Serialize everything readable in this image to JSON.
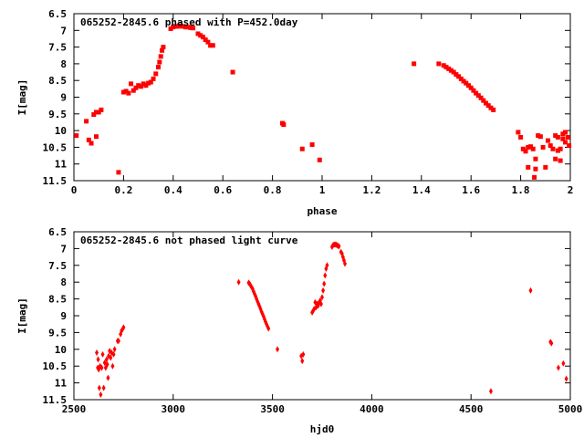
{
  "chart_data": [
    {
      "type": "scatter",
      "title": "065252-2845.6 phased with P=452.0day",
      "xlabel": "phase",
      "ylabel": "I[mag]",
      "xlim": [
        0,
        2
      ],
      "ylim": [
        11.5,
        6.5
      ],
      "y_inverted": true,
      "x_ticks": [
        "0",
        "0.2",
        "0.4",
        "0.6",
        "0.8",
        "1",
        "1.2",
        "1.4",
        "1.6",
        "1.8",
        "2"
      ],
      "y_ticks": [
        "6.5",
        "7",
        "7.5",
        "8",
        "8.5",
        "9",
        "9.5",
        "10",
        "10.5",
        "11",
        "11.5"
      ],
      "grid": false,
      "marker_color": "#ff0000",
      "series": [
        {
          "points": [
            [
              0.01,
              10.15
            ],
            [
              0.05,
              9.72
            ],
            [
              0.06,
              10.28
            ],
            [
              0.07,
              10.38
            ],
            [
              0.08,
              9.52
            ],
            [
              0.09,
              10.18
            ],
            [
              0.09,
              9.45
            ],
            [
              0.1,
              9.45
            ],
            [
              0.11,
              9.38
            ],
            [
              0.18,
              11.25
            ],
            [
              0.2,
              8.85
            ],
            [
              0.21,
              8.82
            ],
            [
              0.22,
              8.88
            ],
            [
              0.23,
              8.6
            ],
            [
              0.24,
              8.8
            ],
            [
              0.25,
              8.72
            ],
            [
              0.26,
              8.65
            ],
            [
              0.27,
              8.68
            ],
            [
              0.28,
              8.6
            ],
            [
              0.29,
              8.65
            ],
            [
              0.3,
              8.58
            ],
            [
              0.31,
              8.55
            ],
            [
              0.32,
              8.45
            ],
            [
              0.33,
              8.3
            ],
            [
              0.34,
              8.1
            ],
            [
              0.345,
              7.95
            ],
            [
              0.35,
              7.78
            ],
            [
              0.355,
              7.6
            ],
            [
              0.36,
              7.5
            ],
            [
              0.39,
              6.95
            ],
            [
              0.4,
              6.9
            ],
            [
              0.41,
              6.88
            ],
            [
              0.42,
              6.88
            ],
            [
              0.43,
              6.87
            ],
            [
              0.44,
              6.88
            ],
            [
              0.45,
              6.9
            ],
            [
              0.46,
              6.9
            ],
            [
              0.47,
              6.92
            ],
            [
              0.48,
              6.93
            ],
            [
              0.5,
              7.1
            ],
            [
              0.51,
              7.15
            ],
            [
              0.52,
              7.2
            ],
            [
              0.53,
              7.28
            ],
            [
              0.54,
              7.35
            ],
            [
              0.55,
              7.45
            ],
            [
              0.56,
              7.45
            ],
            [
              0.64,
              8.25
            ],
            [
              0.84,
              9.78
            ],
            [
              0.845,
              9.82
            ],
            [
              0.92,
              10.55
            ],
            [
              0.96,
              10.42
            ],
            [
              0.99,
              10.88
            ],
            [
              1.37,
              8.0
            ],
            [
              1.47,
              8.0
            ],
            [
              1.49,
              8.05
            ],
            [
              1.5,
              8.1
            ],
            [
              1.51,
              8.15
            ],
            [
              1.52,
              8.2
            ],
            [
              1.53,
              8.25
            ],
            [
              1.54,
              8.32
            ],
            [
              1.55,
              8.38
            ],
            [
              1.56,
              8.45
            ],
            [
              1.57,
              8.52
            ],
            [
              1.58,
              8.58
            ],
            [
              1.59,
              8.65
            ],
            [
              1.6,
              8.72
            ],
            [
              1.61,
              8.8
            ],
            [
              1.62,
              8.88
            ],
            [
              1.63,
              8.95
            ],
            [
              1.64,
              9.02
            ],
            [
              1.65,
              9.1
            ],
            [
              1.66,
              9.18
            ],
            [
              1.67,
              9.25
            ],
            [
              1.68,
              9.32
            ],
            [
              1.69,
              9.38
            ],
            [
              1.79,
              10.05
            ],
            [
              1.8,
              10.2
            ],
            [
              1.81,
              10.55
            ],
            [
              1.82,
              10.62
            ],
            [
              1.83,
              11.1
            ],
            [
              1.83,
              10.5
            ],
            [
              1.84,
              10.48
            ],
            [
              1.85,
              10.55
            ],
            [
              1.855,
              11.4
            ],
            [
              1.86,
              10.85
            ],
            [
              1.86,
              11.15
            ],
            [
              1.87,
              10.15
            ],
            [
              1.88,
              10.18
            ],
            [
              1.89,
              10.5
            ],
            [
              1.9,
              11.1
            ],
            [
              1.91,
              10.3
            ],
            [
              1.92,
              10.45
            ],
            [
              1.93,
              10.55
            ],
            [
              1.94,
              10.15
            ],
            [
              1.94,
              10.85
            ],
            [
              1.95,
              10.6
            ],
            [
              1.95,
              10.2
            ],
            [
              1.96,
              10.55
            ],
            [
              1.96,
              10.9
            ],
            [
              1.97,
              10.25
            ],
            [
              1.97,
              10.1
            ],
            [
              1.98,
              10.35
            ],
            [
              1.98,
              10.05
            ],
            [
              1.99,
              10.2
            ],
            [
              1.995,
              10.45
            ]
          ]
        }
      ]
    },
    {
      "type": "scatter",
      "title": "065252-2845.6 not phased light curve",
      "xlabel": "hjd0",
      "ylabel": "I[mag]",
      "xlim": [
        2500,
        5000
      ],
      "ylim": [
        11.5,
        6.5
      ],
      "y_inverted": true,
      "x_ticks": [
        "2500",
        "3000",
        "3500",
        "4000",
        "4500",
        "5000"
      ],
      "y_ticks": [
        "6.5",
        "7",
        "7.5",
        "8",
        "8.5",
        "9",
        "9.5",
        "10",
        "10.5",
        "11",
        "11.5"
      ],
      "grid": false,
      "marker_color": "#ff0000",
      "series": [
        {
          "points": [
            [
              2615,
              10.1
            ],
            [
              2620,
              10.55
            ],
            [
              2622,
              10.3
            ],
            [
              2625,
              10.6
            ],
            [
              2628,
              11.15
            ],
            [
              2632,
              10.5
            ],
            [
              2635,
              11.35
            ],
            [
              2640,
              10.55
            ],
            [
              2645,
              10.15
            ],
            [
              2650,
              11.15
            ],
            [
              2655,
              10.4
            ],
            [
              2660,
              10.55
            ],
            [
              2665,
              10.3
            ],
            [
              2668,
              10.45
            ],
            [
              2672,
              10.85
            ],
            [
              2675,
              10.2
            ],
            [
              2680,
              10.05
            ],
            [
              2685,
              10.25
            ],
            [
              2690,
              10.1
            ],
            [
              2695,
              10.5
            ],
            [
              2700,
              10.15
            ],
            [
              2705,
              10.0
            ],
            [
              2720,
              9.75
            ],
            [
              2725,
              9.75
            ],
            [
              2735,
              9.55
            ],
            [
              2740,
              9.45
            ],
            [
              2745,
              9.4
            ],
            [
              2750,
              9.35
            ],
            [
              3330,
              8.0
            ],
            [
              3380,
              8.02
            ],
            [
              3385,
              8.05
            ],
            [
              3390,
              8.1
            ],
            [
              3395,
              8.15
            ],
            [
              3400,
              8.2
            ],
            [
              3405,
              8.28
            ],
            [
              3410,
              8.35
            ],
            [
              3415,
              8.42
            ],
            [
              3420,
              8.5
            ],
            [
              3425,
              8.58
            ],
            [
              3430,
              8.65
            ],
            [
              3435,
              8.72
            ],
            [
              3440,
              8.8
            ],
            [
              3445,
              8.88
            ],
            [
              3450,
              8.95
            ],
            [
              3455,
              9.02
            ],
            [
              3460,
              9.1
            ],
            [
              3465,
              9.18
            ],
            [
              3470,
              9.25
            ],
            [
              3475,
              9.32
            ],
            [
              3480,
              9.38
            ],
            [
              3525,
              10.0
            ],
            [
              3645,
              10.2
            ],
            [
              3650,
              10.35
            ],
            [
              3655,
              10.15
            ],
            [
              3700,
              8.9
            ],
            [
              3705,
              8.85
            ],
            [
              3710,
              8.8
            ],
            [
              3715,
              8.6
            ],
            [
              3720,
              8.75
            ],
            [
              3725,
              8.65
            ],
            [
              3730,
              8.7
            ],
            [
              3735,
              8.6
            ],
            [
              3740,
              8.55
            ],
            [
              3745,
              8.65
            ],
            [
              3750,
              8.45
            ],
            [
              3755,
              8.25
            ],
            [
              3760,
              8.05
            ],
            [
              3765,
              7.8
            ],
            [
              3770,
              7.6
            ],
            [
              3775,
              7.5
            ],
            [
              3800,
              6.95
            ],
            [
              3805,
              6.9
            ],
            [
              3810,
              6.88
            ],
            [
              3815,
              6.88
            ],
            [
              3820,
              6.88
            ],
            [
              3825,
              6.9
            ],
            [
              3830,
              6.92
            ],
            [
              3835,
              6.93
            ],
            [
              3845,
              7.1
            ],
            [
              3850,
              7.15
            ],
            [
              3855,
              7.25
            ],
            [
              3860,
              7.35
            ],
            [
              3865,
              7.45
            ],
            [
              4600,
              11.25
            ],
            [
              4800,
              8.25
            ],
            [
              4900,
              9.78
            ],
            [
              4905,
              9.82
            ],
            [
              4940,
              10.55
            ],
            [
              4965,
              10.42
            ],
            [
              4980,
              10.88
            ]
          ]
        }
      ]
    }
  ]
}
